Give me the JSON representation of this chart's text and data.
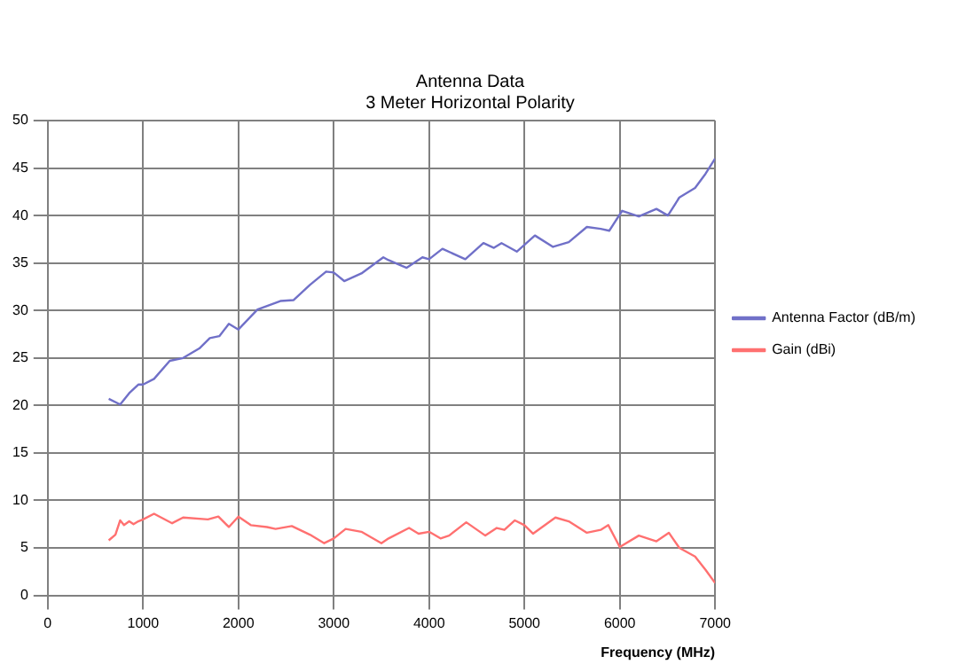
{
  "chart_data": {
    "type": "line",
    "title": [
      "Antenna Data",
      "3 Meter Horizontal Polarity"
    ],
    "xlabel": "Frequency (MHz)",
    "xlim": [
      0,
      7000
    ],
    "xticks": [
      0,
      1000,
      2000,
      3000,
      4000,
      5000,
      6000,
      7000
    ],
    "ylim": [
      0,
      50
    ],
    "yticks": [
      0,
      5,
      10,
      15,
      20,
      25,
      30,
      35,
      40,
      45,
      50
    ],
    "grid": true,
    "legend": "right",
    "marker": "none",
    "line_style": "solid",
    "series": [
      {
        "name": "Antenna Factor (dB/m)",
        "color": "#7070c8",
        "x": [
          640,
          760,
          855,
          950,
          1000,
          1115,
          1280,
          1420,
          1590,
          1700,
          1800,
          1900,
          2000,
          2200,
          2440,
          2580,
          2750,
          2920,
          3000,
          3110,
          3290,
          3520,
          3575,
          3715,
          3765,
          3930,
          4000,
          4140,
          4380,
          4570,
          4680,
          4760,
          4920,
          5110,
          5300,
          5465,
          5655,
          5800,
          5890,
          6025,
          6200,
          6385,
          6505,
          6625,
          6790,
          6900,
          7000
        ],
        "values": [
          20.7,
          20.1,
          21.3,
          22.2,
          22.2,
          22.8,
          24.7,
          25.0,
          26.0,
          27.1,
          27.3,
          28.6,
          28.0,
          30.1,
          31.0,
          31.1,
          32.7,
          34.1,
          34.0,
          33.1,
          33.9,
          35.6,
          35.3,
          34.7,
          34.5,
          35.6,
          35.4,
          36.5,
          35.4,
          37.1,
          36.6,
          37.1,
          36.2,
          37.9,
          36.7,
          37.2,
          38.8,
          38.6,
          38.4,
          40.5,
          39.9,
          40.7,
          40.0,
          41.9,
          42.9,
          44.4,
          46.0
        ]
      },
      {
        "name": "Gain (dBi)",
        "color": "#ff7070",
        "x": [
          640,
          710,
          760,
          800,
          855,
          900,
          950,
          1000,
          1115,
          1305,
          1420,
          1680,
          1790,
          1900,
          2000,
          2130,
          2300,
          2390,
          2560,
          2750,
          2900,
          3000,
          3125,
          3290,
          3500,
          3575,
          3790,
          3890,
          4000,
          4120,
          4210,
          4390,
          4590,
          4710,
          4790,
          4900,
          5000,
          5090,
          5325,
          5465,
          5655,
          5800,
          5880,
          6000,
          6200,
          6385,
          6515,
          6625,
          6790,
          6900,
          7000
        ],
        "values": [
          5.8,
          6.4,
          7.9,
          7.4,
          7.8,
          7.5,
          7.8,
          8.0,
          8.6,
          7.6,
          8.2,
          8.0,
          8.3,
          7.2,
          8.3,
          7.4,
          7.2,
          7.0,
          7.3,
          6.4,
          5.5,
          6.0,
          7.0,
          6.7,
          5.5,
          6.0,
          7.1,
          6.5,
          6.7,
          6.0,
          6.3,
          7.7,
          6.3,
          7.1,
          6.9,
          7.9,
          7.4,
          6.5,
          8.2,
          7.8,
          6.6,
          6.9,
          7.4,
          5.1,
          6.3,
          5.7,
          6.6,
          5.0,
          4.1,
          2.7,
          1.3
        ]
      }
    ]
  }
}
